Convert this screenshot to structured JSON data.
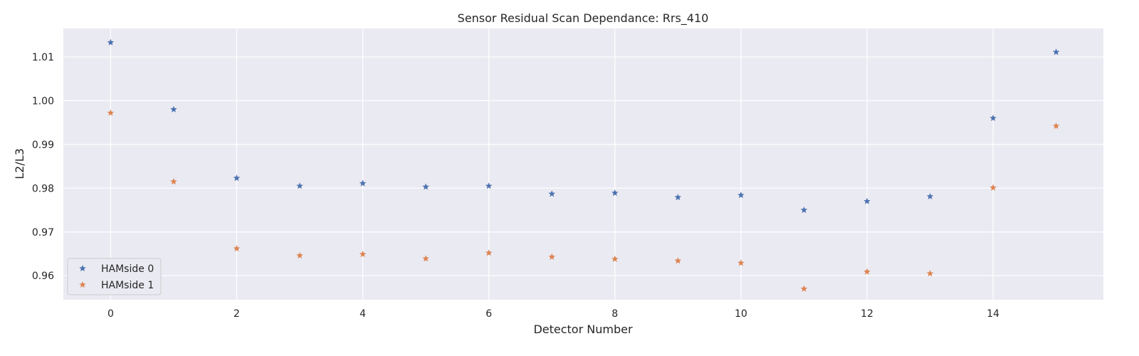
{
  "chart_data": {
    "type": "scatter",
    "title": "Sensor Residual Scan Dependance: Rrs_410",
    "xlabel": "Detector Number",
    "ylabel": "L2/L3",
    "xlim": [
      -0.75,
      15.75
    ],
    "ylim": [
      0.9545,
      1.0165
    ],
    "xticks": [
      0,
      2,
      4,
      6,
      8,
      10,
      12,
      14
    ],
    "yticks": [
      0.96,
      0.97,
      0.98,
      0.99,
      1.0,
      1.01
    ],
    "ytick_labels": [
      "0.96",
      "0.97",
      "0.98",
      "0.99",
      "1.00",
      "1.01"
    ],
    "grid": true,
    "marker": "star",
    "legend": {
      "position": "lower-left"
    },
    "x": [
      0,
      1,
      2,
      3,
      4,
      5,
      6,
      7,
      8,
      9,
      10,
      11,
      12,
      13,
      14,
      15
    ],
    "series": [
      {
        "name": "HAMside 0",
        "color": "#4c72b0",
        "values": [
          1.0133,
          0.998,
          0.9823,
          0.9805,
          0.9811,
          0.9803,
          0.9805,
          0.9787,
          0.9789,
          0.9779,
          0.9784,
          0.975,
          0.977,
          0.9781,
          0.996,
          1.0111
        ]
      },
      {
        "name": "HAMside 1",
        "color": "#dd8452",
        "values": [
          0.9972,
          0.9815,
          0.9662,
          0.9646,
          0.9649,
          0.9639,
          0.9652,
          0.9643,
          0.9638,
          0.9634,
          0.9629,
          0.957,
          0.9609,
          0.9605,
          0.9801,
          0.9942
        ]
      }
    ]
  }
}
